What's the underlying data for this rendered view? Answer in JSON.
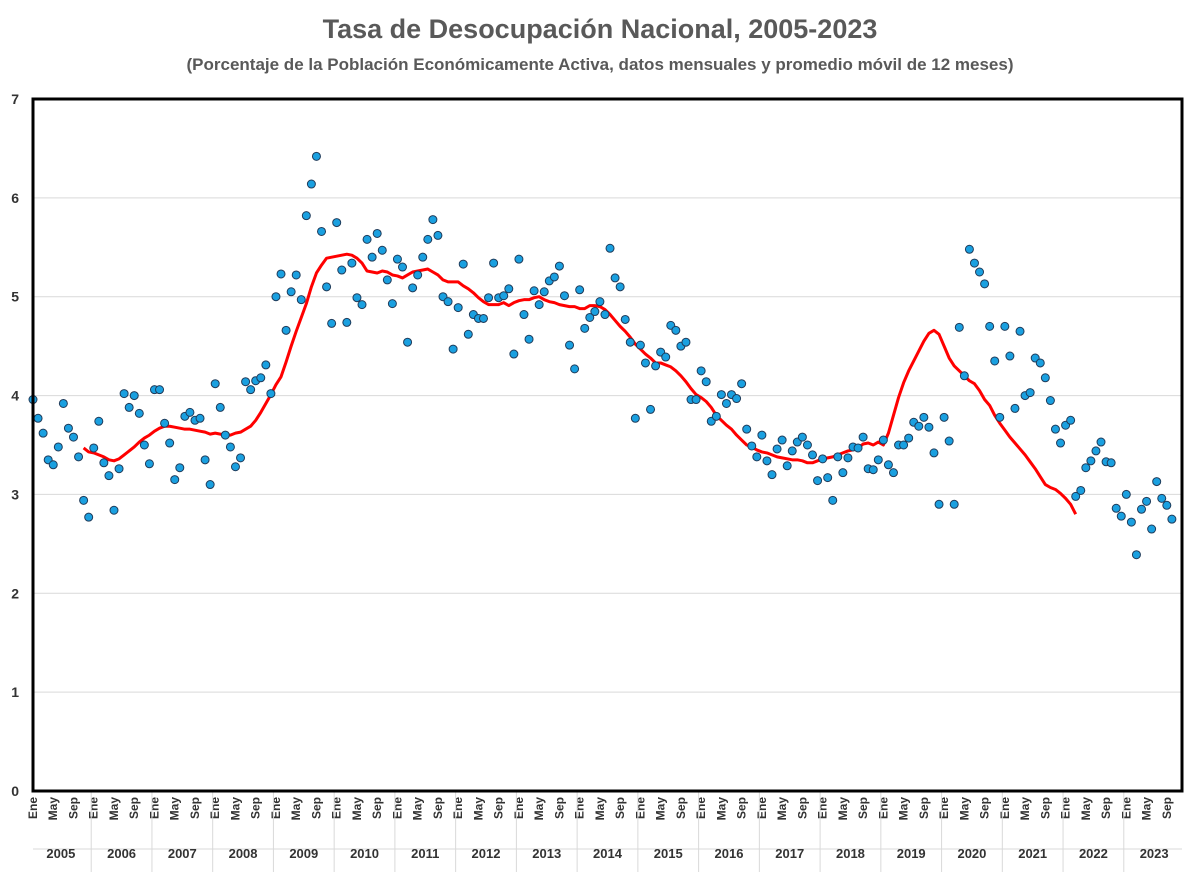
{
  "chart_data": {
    "type": "scatter",
    "title": "Tasa de Desocupación Nacional, 2005-2023",
    "subtitle": "(Porcentaje de la Población Económicamente Activa, datos mensuales y promedio móvil de 12 meses)",
    "xlabel": "",
    "ylabel": "",
    "ylim": [
      0,
      7
    ],
    "yticks": [
      0,
      1,
      2,
      3,
      4,
      5,
      6,
      7
    ],
    "grid": true,
    "legend": "none",
    "month_tick_labels": [
      "Ene",
      "May",
      "Sep"
    ],
    "years": [
      "2005",
      "2006",
      "2007",
      "2008",
      "2009",
      "2010",
      "2011",
      "2012",
      "2013",
      "2014",
      "2015",
      "2016",
      "2017",
      "2018",
      "2019",
      "2020",
      "2021",
      "2022",
      "2023"
    ],
    "series": [
      {
        "kind": "monthly-points",
        "color": "#1aa0e0",
        "values": [
          3.96,
          3.77,
          3.62,
          3.35,
          3.3,
          3.48,
          3.92,
          3.67,
          3.58,
          3.38,
          2.94,
          2.77,
          3.47,
          3.74,
          3.32,
          3.19,
          2.84,
          3.26,
          4.02,
          3.88,
          4.0,
          3.82,
          3.5,
          3.31,
          4.06,
          4.06,
          3.72,
          3.52,
          3.15,
          3.27,
          3.79,
          3.83,
          3.75,
          3.77,
          3.35,
          3.1,
          4.12,
          3.88,
          3.6,
          3.48,
          3.28,
          3.37,
          4.14,
          4.06,
          4.15,
          4.18,
          4.31,
          4.02,
          5.0,
          5.23,
          4.66,
          5.05,
          5.22,
          4.97,
          5.82,
          6.14,
          6.42,
          5.66,
          5.1,
          4.73,
          5.75,
          5.27,
          4.74,
          5.34,
          4.99,
          4.92,
          5.58,
          5.4,
          5.64,
          5.47,
          5.17,
          4.93,
          5.38,
          5.3,
          4.54,
          5.09,
          5.22,
          5.4,
          5.58,
          5.78,
          5.62,
          5.0,
          4.95,
          4.47,
          4.89,
          5.33,
          4.62,
          4.82,
          4.78,
          4.78,
          4.99,
          5.34,
          4.99,
          5.01,
          5.08,
          4.42,
          5.38,
          4.82,
          4.57,
          5.06,
          4.92,
          5.05,
          5.16,
          5.2,
          5.31,
          5.01,
          4.51,
          4.27,
          5.07,
          4.68,
          4.79,
          4.85,
          4.95,
          4.82,
          5.49,
          5.19,
          5.1,
          4.77,
          4.54,
          3.77,
          4.51,
          4.33,
          3.86,
          4.3,
          4.44,
          4.39,
          4.71,
          4.66,
          4.5,
          4.54,
          3.96,
          3.96,
          4.25,
          4.14,
          3.74,
          3.79,
          4.01,
          3.92,
          4.01,
          3.97,
          4.12,
          3.66,
          3.49,
          3.38,
          3.6,
          3.34,
          3.2,
          3.46,
          3.55,
          3.29,
          3.44,
          3.53,
          3.58,
          3.5,
          3.4,
          3.14,
          3.36,
          3.17,
          2.94,
          3.38,
          3.22,
          3.37,
          3.48,
          3.47,
          3.58,
          3.26,
          3.25,
          3.35,
          3.55,
          3.3,
          3.22,
          3.5,
          3.5,
          3.57,
          3.73,
          3.69,
          3.78,
          3.68,
          3.42,
          2.9,
          3.78,
          3.54,
          2.9,
          4.69,
          4.2,
          5.48,
          5.34,
          5.25,
          5.13,
          4.7,
          4.35,
          3.78,
          4.7,
          4.4,
          3.87,
          4.65,
          4.0,
          4.03,
          4.38,
          4.33,
          4.18,
          3.95,
          3.66,
          3.52,
          3.7,
          3.75,
          2.98,
          3.04,
          3.27,
          3.34,
          3.44,
          3.53,
          3.33,
          3.32,
          2.86,
          2.78,
          3.0,
          2.72,
          2.39,
          2.85,
          2.93,
          2.65,
          3.13,
          2.96,
          2.89,
          2.75
        ]
      },
      {
        "kind": "moving-average-12m",
        "color": "#ff0000",
        "start_month_index": 10,
        "values": [
          3.47,
          3.43,
          3.42,
          3.4,
          3.38,
          3.35,
          3.34,
          3.36,
          3.4,
          3.44,
          3.48,
          3.53,
          3.57,
          3.6,
          3.64,
          3.67,
          3.69,
          3.69,
          3.68,
          3.67,
          3.66,
          3.66,
          3.65,
          3.64,
          3.63,
          3.61,
          3.62,
          3.61,
          3.6,
          3.6,
          3.62,
          3.63,
          3.66,
          3.69,
          3.75,
          3.83,
          3.92,
          4.01,
          4.11,
          4.19,
          4.34,
          4.5,
          4.65,
          4.79,
          4.93,
          5.1,
          5.24,
          5.32,
          5.39,
          5.4,
          5.41,
          5.42,
          5.43,
          5.42,
          5.39,
          5.34,
          5.26,
          5.25,
          5.24,
          5.26,
          5.25,
          5.22,
          5.21,
          5.19,
          5.22,
          5.25,
          5.26,
          5.27,
          5.28,
          5.25,
          5.22,
          5.17,
          5.15,
          5.15,
          5.15,
          5.11,
          5.08,
          5.04,
          4.99,
          4.95,
          4.92,
          4.92,
          4.92,
          4.94,
          4.91,
          4.94,
          4.96,
          4.97,
          4.97,
          4.99,
          5.0,
          4.97,
          4.95,
          4.94,
          4.92,
          4.91,
          4.9,
          4.9,
          4.88,
          4.88,
          4.91,
          4.91,
          4.9,
          4.87,
          4.82,
          4.76,
          4.7,
          4.65,
          4.59,
          4.52,
          4.47,
          4.42,
          4.38,
          4.33,
          4.33,
          4.31,
          4.29,
          4.25,
          4.2,
          4.14,
          4.07,
          4.01,
          3.98,
          3.94,
          3.88,
          3.8,
          3.75,
          3.7,
          3.66,
          3.6,
          3.55,
          3.5,
          3.48,
          3.45,
          3.43,
          3.42,
          3.4,
          3.38,
          3.37,
          3.36,
          3.35,
          3.35,
          3.34,
          3.32,
          3.32,
          3.34,
          3.36,
          3.37,
          3.38,
          3.4,
          3.42,
          3.44,
          3.45,
          3.47,
          3.51,
          3.52,
          3.5,
          3.53,
          3.5,
          3.62,
          3.8,
          3.98,
          4.13,
          4.25,
          4.35,
          4.45,
          4.55,
          4.63,
          4.66,
          4.62,
          4.5,
          4.38,
          4.3,
          4.25,
          4.2,
          4.15,
          4.12,
          4.05,
          3.96,
          3.9,
          3.8,
          3.72,
          3.65,
          3.58,
          3.52,
          3.46,
          3.4,
          3.33,
          3.26,
          3.18,
          3.1,
          3.07,
          3.05,
          3.01,
          2.96,
          2.9,
          2.8
        ]
      }
    ]
  }
}
